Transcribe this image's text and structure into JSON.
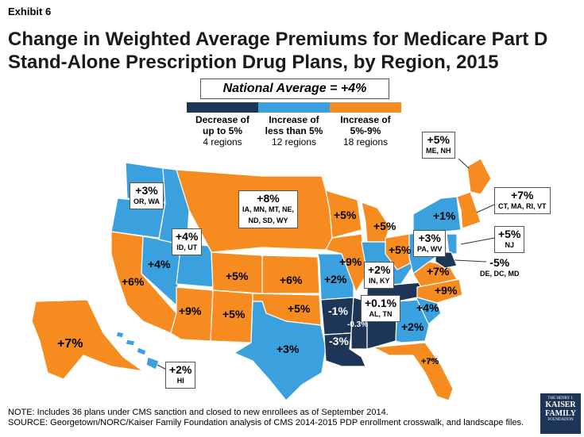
{
  "exhibit": "Exhibit 6",
  "title_line1": "Change in Weighted Average Premiums for Medicare Part D",
  "title_line2": "Stand-Alone Prescription Drug Plans, by Region, 2015",
  "national_average": "National Average = +4%",
  "colors": {
    "decrease": "#1d3557",
    "low": "#3aa1de",
    "high": "#f68b1f"
  },
  "legend": [
    {
      "line1": "Decrease of",
      "line2": "up to 5%",
      "count": "4 regions"
    },
    {
      "line1": "Increase of",
      "line2": "less than 5%",
      "count": "12 regions"
    },
    {
      "line1": "Increase of",
      "line2": "5%-9%",
      "count": "18 regions"
    }
  ],
  "callouts": {
    "or_wa": {
      "value": "+3%",
      "states": "OR, WA"
    },
    "id_ut": {
      "value": "+4%",
      "states": "ID, UT"
    },
    "north": {
      "value": "+8%",
      "states_line1": "IA, MN, MT, NE,",
      "states_line2": "ND, SD, WY"
    },
    "me_nh": {
      "value": "+5%",
      "states": "ME, NH"
    },
    "ct_ma": {
      "value": "+7%",
      "states": "CT, MA, RI, VT"
    },
    "nj": {
      "value": "+5%",
      "states": "NJ"
    },
    "de_dc": {
      "value": "-5%",
      "states": "DE, DC, MD"
    },
    "pa_wv": {
      "value": "+3%",
      "states": "PA, WV"
    },
    "in_ky": {
      "value": "+2%",
      "states": "IN, KY"
    },
    "al_tn": {
      "value": "+0.1%",
      "states": "AL, TN"
    },
    "hi": {
      "value": "+2%",
      "states": "HI"
    }
  },
  "labels": {
    "ca": "+6%",
    "nv": "+4%",
    "az": "+9%",
    "nm": "+5%",
    "co": "+5%",
    "ks": "+6%",
    "ok": "+5%",
    "tx": "+3%",
    "mo": "+2%",
    "ar": "-1%",
    "la": "-3%",
    "ms": "-0.3%",
    "il": "+9%",
    "wi": "+5%",
    "mi": "+5%",
    "oh": "+5%",
    "ny": "+1%",
    "va": "+7%",
    "nc": "+9%",
    "sc": "+4%",
    "ga": "+2%",
    "fl": "+7%",
    "ak": "+7%"
  },
  "note": "NOTE: Includes 36 plans under CMS sanction and closed to new enrollees as of September 2014.",
  "source": "SOURCE: Georgetown/NORC/Kaiser Family Foundation analysis of CMS 2014-2015 PDP enrollment crosswalk, and landscape files.",
  "logo": {
    "line1": "THE HENRY J.",
    "line2": "KAISER",
    "line3": "FAMILY",
    "line4": "FOUNDATION"
  }
}
